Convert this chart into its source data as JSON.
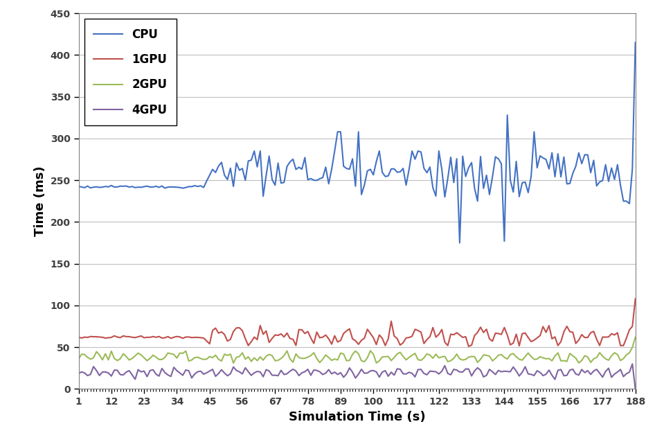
{
  "title": "",
  "xlabel": "Simulation Time (s)",
  "ylabel": "Time (ms)",
  "xlim": [
    1,
    188
  ],
  "ylim": [
    0,
    450
  ],
  "xticks": [
    1,
    12,
    23,
    34,
    45,
    56,
    67,
    78,
    89,
    100,
    111,
    122,
    133,
    144,
    155,
    166,
    177,
    188
  ],
  "yticks": [
    0,
    50,
    100,
    150,
    200,
    250,
    300,
    350,
    400,
    450
  ],
  "legend": [
    "CPU",
    "1GPU",
    "2GPU",
    "4GPU"
  ],
  "colors": [
    "#4472C4",
    "#C0504D",
    "#9BBB59",
    "#8064A2"
  ],
  "line_width": 1.5,
  "bg_color": "#FFFFFF",
  "grid_color": "#BFBFBF",
  "tick_label_color": "#595959",
  "axis_label_color": "#000000"
}
